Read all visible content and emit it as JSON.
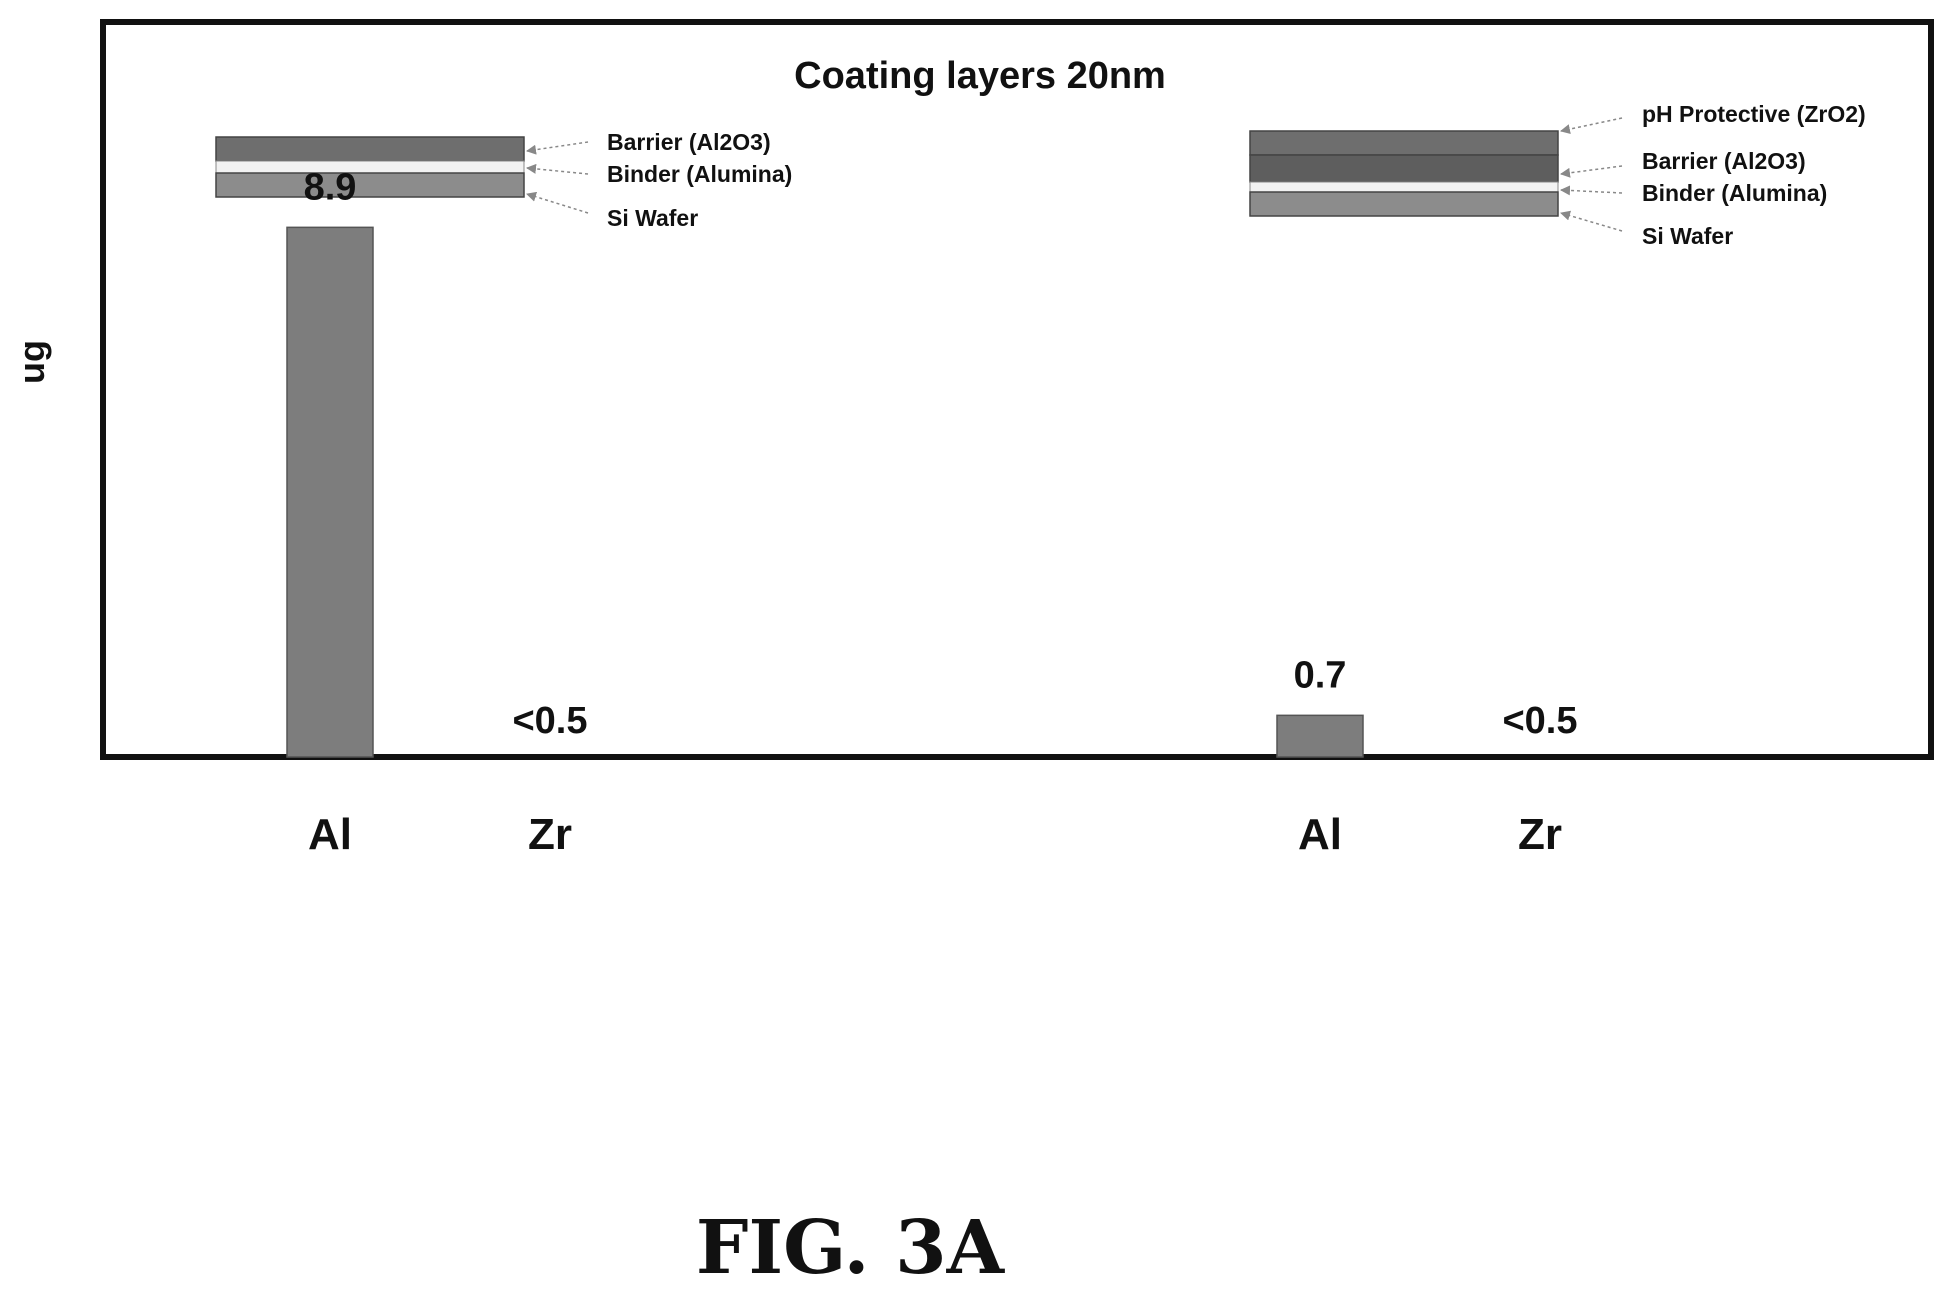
{
  "chart_data": {
    "type": "bar",
    "title": "Coating layers 20nm",
    "ylabel": "ug",
    "xlabel": "",
    "groups": [
      {
        "layers": [
          "Barrier (Al2O3)",
          "Binder (Alumina)",
          "Si Wafer"
        ],
        "bars": [
          {
            "category": "Al",
            "value": 8.9,
            "label": "8.9"
          },
          {
            "category": "Zr",
            "value": 0,
            "label": "<0.5"
          }
        ]
      },
      {
        "layers": [
          "pH Protective (ZrO2)",
          "Barrier (Al2O3)",
          "Binder (Alumina)",
          "Si Wafer"
        ],
        "bars": [
          {
            "category": "Al",
            "value": 0.7,
            "label": "0.7"
          },
          {
            "category": "Zr",
            "value": 0,
            "label": "<0.5"
          }
        ]
      }
    ],
    "ylim": [
      0,
      12.3
    ],
    "grid": false,
    "colors": {
      "bar": "#7d7d7d",
      "layer_dark": "#6e6e6e",
      "layer_mid": "#8c8c8c",
      "binder": "#f2f2f2"
    }
  },
  "figure": {
    "caption": "FIG. 3A"
  }
}
